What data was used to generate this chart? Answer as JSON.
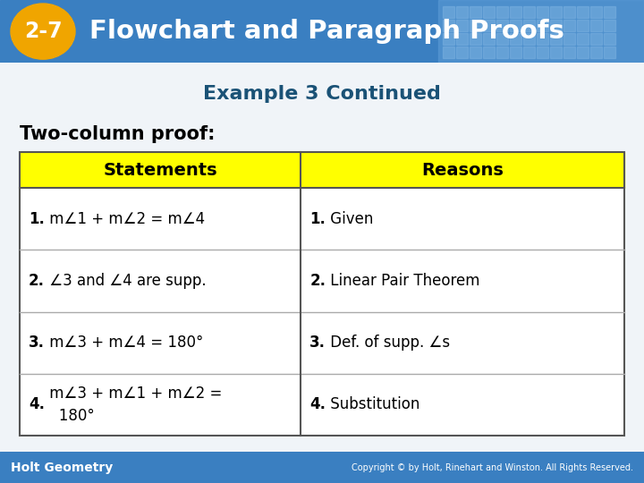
{
  "title": "Flowchart and Paragraph Proofs",
  "title_num": "2-7",
  "subtitle": "Example 3 Continued",
  "section_label": "Two-column proof:",
  "header_bg": "#FFFF00",
  "col1_header": "Statements",
  "col2_header": "Reasons",
  "rows": [
    {
      "statement_bold": "1.",
      "statement_rest": " m∠1 + m∠2 = m∠4",
      "reason_bold": "1.",
      "reason_rest": " Given"
    },
    {
      "statement_bold": "2.",
      "statement_rest": " ∠3 and ∠4 are supp.",
      "reason_bold": "2.",
      "reason_rest": " Linear Pair Theorem"
    },
    {
      "statement_bold": "3.",
      "statement_rest": " m∠3 + m∠4 = 180°",
      "reason_bold": "3.",
      "reason_rest": " Def. of supp. ∠s"
    },
    {
      "statement_bold": "4.",
      "statement_rest": " m∠3 + m∠1 + m∠2 =\n   180°",
      "reason_bold": "4.",
      "reason_rest": " Substitution"
    }
  ],
  "header_bar_color": "#3A7FC1",
  "badge_color": "#F0A500",
  "footer_bg": "#3A7FC1",
  "footer_text_left": "Holt Geometry",
  "footer_text_right": "Copyright © by Holt, Rinehart and Winston. All Rights Reserved.",
  "bg_color": "#F0F4F8",
  "subtitle_color": "#1a5276"
}
